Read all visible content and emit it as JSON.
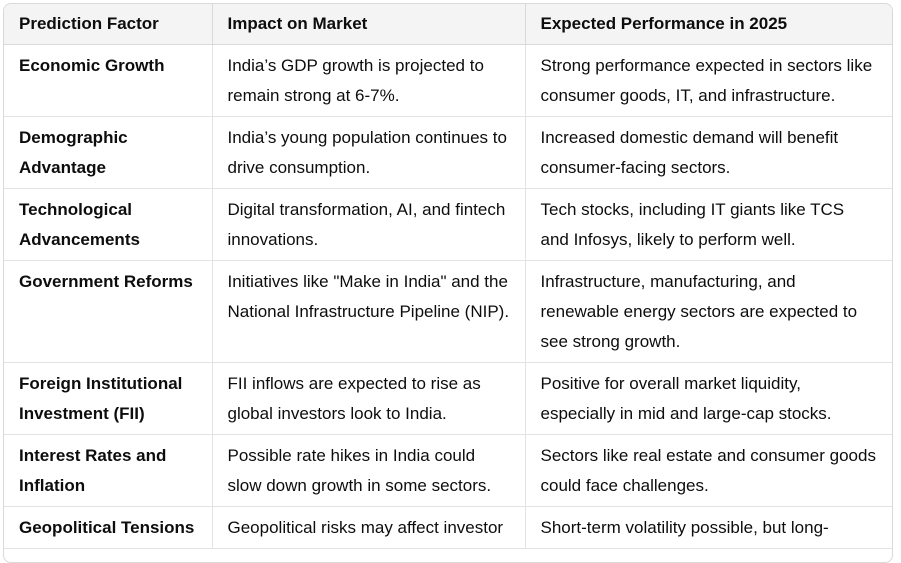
{
  "table": {
    "headers": [
      "Prediction Factor",
      "Impact on Market",
      "Expected Performance in 2025"
    ],
    "rows": [
      {
        "factor": "Economic Growth",
        "impact": "India’s GDP growth is projected to remain strong at 6-7%.",
        "performance": "Strong performance expected in sectors like consumer goods, IT, and infrastructure."
      },
      {
        "factor": "Demographic Advantage",
        "impact": "India’s young population continues to drive consumption.",
        "performance": "Increased domestic demand will benefit consumer-facing sectors."
      },
      {
        "factor": "Technological Advancements",
        "impact": "Digital transformation, AI, and fintech innovations.",
        "performance": "Tech stocks, including IT giants like TCS and Infosys, likely to perform well."
      },
      {
        "factor": "Government Reforms",
        "impact": "Initiatives like \"Make in India\" and the National Infrastructure Pipeline (NIP).",
        "performance": "Infrastructure, manufacturing, and renewable energy sectors are expected to see strong growth."
      },
      {
        "factor": "Foreign Institutional Investment (FII)",
        "impact": "FII inflows are expected to rise as global investors look to India.",
        "performance": "Positive for overall market liquidity, especially in mid and large-cap stocks."
      },
      {
        "factor": "Interest Rates and Inflation",
        "impact": "Possible rate hikes in India could slow down growth in some sectors.",
        "performance": "Sectors like real estate and consumer goods could face challenges."
      },
      {
        "factor": "Geopolitical Tensions",
        "impact": "Geopolitical risks may affect investor",
        "performance": "Short-term volatility possible, but long-"
      }
    ]
  }
}
